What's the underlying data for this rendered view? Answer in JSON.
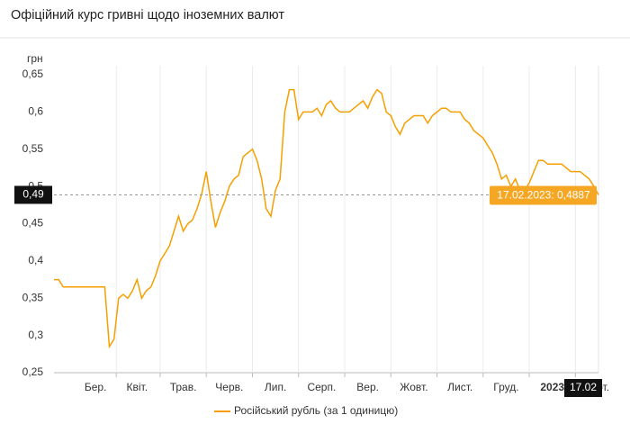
{
  "chart_data": {
    "type": "line",
    "title": "Офіційний курс гривні щодо іноземних валют",
    "y_label": "грн",
    "categories": [
      null,
      null,
      null,
      null,
      null,
      null,
      null,
      null,
      null,
      "Бер.",
      null,
      null,
      null,
      null,
      null,
      null,
      null,
      null,
      "Квіт.",
      null,
      null,
      null,
      null,
      null,
      null,
      null,
      null,
      null,
      "Трав.",
      null,
      null,
      null,
      null,
      null,
      null,
      null,
      null,
      null,
      "Черв.",
      null,
      null,
      null,
      null,
      null,
      null,
      null,
      null,
      null,
      "Лип.",
      null,
      null,
      null,
      null,
      null,
      null,
      null,
      null,
      null,
      "Серп.",
      null,
      null,
      null,
      null,
      null,
      null,
      null,
      null,
      null,
      "Вер.",
      null,
      null,
      null,
      null,
      null,
      null,
      null,
      null,
      null,
      "Жовт.",
      null,
      null,
      null,
      null,
      null,
      null,
      null,
      null,
      null,
      "Лист.",
      null,
      null,
      null,
      null,
      null,
      null,
      null,
      null,
      null,
      "Груд.",
      null,
      null,
      null,
      null,
      null,
      null,
      null,
      null,
      null,
      "2023",
      null,
      null,
      null,
      null,
      null,
      null,
      null,
      null,
      null,
      "Лют."
    ],
    "series": [
      {
        "name": "Російський рубль (за 1 одиницю)",
        "color": "#f5a000",
        "values": [
          0.375,
          0.375,
          0.365,
          0.365,
          0.365,
          0.365,
          0.365,
          0.365,
          0.365,
          0.365,
          0.365,
          0.365,
          0.285,
          0.295,
          0.35,
          0.355,
          0.35,
          0.36,
          0.375,
          0.35,
          0.36,
          0.365,
          0.38,
          0.4,
          0.41,
          0.42,
          0.44,
          0.46,
          0.44,
          0.45,
          0.455,
          0.47,
          0.49,
          0.52,
          0.48,
          0.445,
          0.465,
          0.48,
          0.5,
          0.51,
          0.515,
          0.54,
          0.545,
          0.55,
          0.535,
          0.51,
          0.47,
          0.46,
          0.495,
          0.51,
          0.6,
          0.63,
          0.63,
          0.59,
          0.6,
          0.6,
          0.6,
          0.605,
          0.595,
          0.61,
          0.615,
          0.605,
          0.6,
          0.6,
          0.6,
          0.605,
          0.61,
          0.615,
          0.605,
          0.62,
          0.63,
          0.625,
          0.6,
          0.595,
          0.58,
          0.57,
          0.585,
          0.59,
          0.595,
          0.595,
          0.595,
          0.585,
          0.595,
          0.6,
          0.605,
          0.605,
          0.6,
          0.6,
          0.6,
          0.59,
          0.585,
          0.575,
          0.57,
          0.565,
          0.555,
          0.545,
          0.53,
          0.51,
          0.515,
          0.5,
          0.51,
          0.495,
          0.495,
          0.505,
          0.52,
          0.535,
          0.535,
          0.53,
          0.53,
          0.53,
          0.53,
          0.525,
          0.52,
          0.52,
          0.52,
          0.515,
          0.51,
          0.5,
          0.4887
        ]
      }
    ],
    "ylim": [
      0.25,
      0.65
    ],
    "yticks": [
      {
        "value": 0.25,
        "label": "0,25"
      },
      {
        "value": 0.3,
        "label": "0,3"
      },
      {
        "value": 0.35,
        "label": "0,35"
      },
      {
        "value": 0.4,
        "label": "0,4"
      },
      {
        "value": 0.45,
        "label": "0,45"
      },
      {
        "value": 0.5,
        "label": "0,5"
      },
      {
        "value": 0.55,
        "label": "0,55"
      },
      {
        "value": 0.6,
        "label": "0,6"
      },
      {
        "value": 0.65,
        "label": "0,65"
      }
    ],
    "crosshair": {
      "value": 0.4887,
      "label": "0,49"
    },
    "crosshair_x_label": "17.02",
    "tooltip": "17.02.2023: 0,4887",
    "tooltip_color": "#f5a623",
    "bold_categories": [
      "2023"
    ],
    "legend": "bottom"
  }
}
